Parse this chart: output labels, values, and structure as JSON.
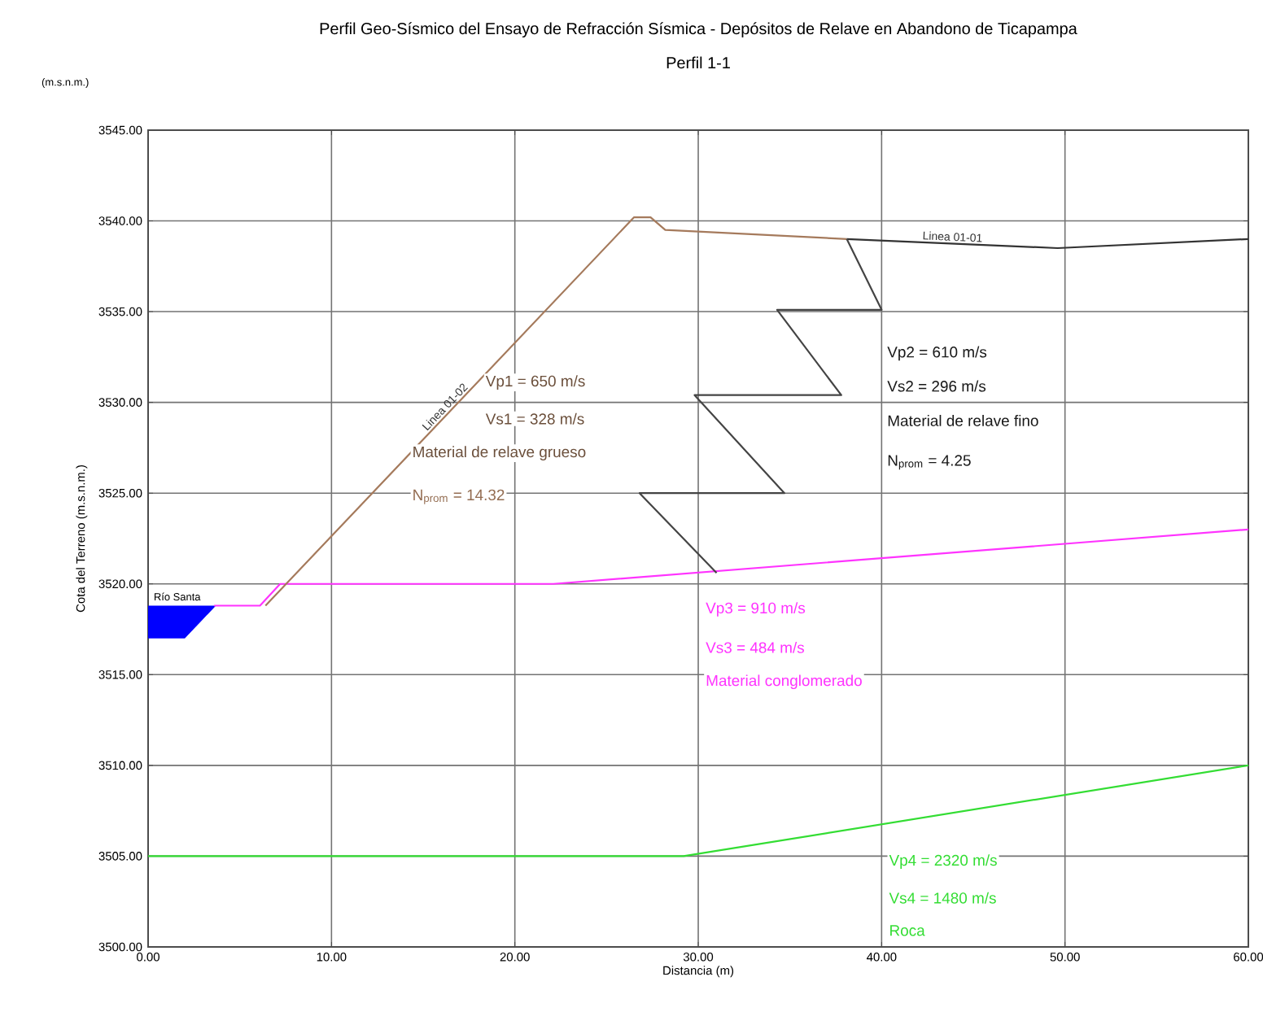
{
  "chart_data": {
    "type": "line",
    "title": "Perfil Geo-Sísmico del Ensayo de Refracción Sísmica - Depósitos de Relave en Abandono de Ticapampa",
    "subtitle": "Perfil 1-1",
    "xlabel": "Distancia (m)",
    "ylabel": "Cota del Terreno (m.s.n.m.)",
    "xlim": [
      0,
      60
    ],
    "ylim": [
      3500,
      3545
    ],
    "xticks": [
      {
        "value": 0,
        "label": "0.00"
      },
      {
        "value": 10,
        "label": "10.00"
      },
      {
        "value": 20,
        "label": "20.00"
      },
      {
        "value": 30,
        "label": "30.00"
      },
      {
        "value": 40,
        "label": "40.00"
      },
      {
        "value": 50,
        "label": "50.00"
      },
      {
        "value": 60,
        "label": "60.00"
      }
    ],
    "yticks": [
      {
        "value": 3500,
        "label": "3500.00"
      },
      {
        "value": 3505,
        "label": "3505.00"
      },
      {
        "value": 3510,
        "label": "3510.00"
      },
      {
        "value": 3515,
        "label": "3515.00"
      },
      {
        "value": 3520,
        "label": "3520.00"
      },
      {
        "value": 3525,
        "label": "3525.00"
      },
      {
        "value": 3530,
        "label": "3530.00"
      },
      {
        "value": 3535,
        "label": "3535.00"
      },
      {
        "value": 3540,
        "label": "3540.00"
      },
      {
        "value": 3545,
        "label": "3545.00"
      }
    ],
    "grid": true,
    "series": [
      {
        "type": "area",
        "color": "#0000ff",
        "x": [
          0,
          3.7,
          2,
          0
        ],
        "values": [
          3518.8,
          3518.8,
          3517,
          3517
        ]
      },
      {
        "color": "#ff33ff",
        "x": [
          3.6,
          6.1,
          7.2,
          22.1,
          60
        ],
        "values": [
          3518.8,
          3518.8,
          3520,
          3520,
          3523
        ]
      },
      {
        "color": "#33dd33",
        "x": [
          0,
          29.2,
          60
        ],
        "values": [
          3505,
          3505,
          3510
        ]
      },
      {
        "name": "Linea 01-02",
        "color": "#a57a5c",
        "x": [
          6.4,
          26.5,
          27.4,
          28.2,
          38.1
        ],
        "values": [
          3518.8,
          3540.2,
          3540.2,
          3539.5,
          3539.0
        ]
      },
      {
        "name": "Linea 01-01",
        "color": "#333333",
        "x": [
          38.1,
          49.6,
          60
        ],
        "values": [
          3539.0,
          3538.5,
          3539.0
        ]
      },
      {
        "color": "#444444",
        "x": [
          38.1,
          40.0,
          34.3,
          37.8,
          29.8,
          34.7,
          26.8,
          31.0
        ],
        "values": [
          3539,
          3535.1,
          3535.1,
          3530.4,
          3530.4,
          3525,
          3525,
          3520.6
        ]
      }
    ],
    "annotations": [
      "(m.s.n.m.)",
      "Río Santa",
      "Vp1 = 650 m/s",
      "Vs1 = 328 m/s",
      "Material de relave grueso",
      "N$_{prom}$ = 14.32",
      "Vp2 = 610 m/s",
      "Vs2 = 296 m/s",
      "Material de relave fino",
      "N$_{prom}$ = 4.25",
      "Vp3 = 910 m/s",
      "Vs3 = 484 m/s",
      "Material conglomerado",
      "Vp4 = 2320 m/s",
      "Vs4 = 1480 m/s",
      "Roca"
    ]
  }
}
